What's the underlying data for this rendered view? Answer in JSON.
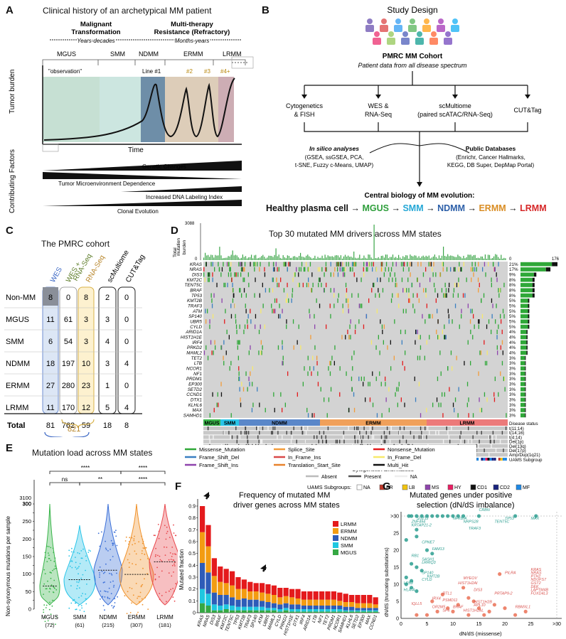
{
  "panelA": {
    "letter": "A",
    "title": "Clinical history of an archetypical MM patient",
    "phase1": "Malignant\nTransformation",
    "phase2": "Multi-therapy\nResistance (Refractory)",
    "years": "Years-decades",
    "months": "Months-years",
    "states": [
      "MGUS",
      "SMM",
      "NDMM",
      "ERMM",
      "LRMM"
    ],
    "observation": "\"observation\"",
    "lines": [
      "Line #1",
      "#2",
      "#3",
      "#4+"
    ],
    "ylabel": "Tumor burden",
    "xlabel": "Time",
    "factors_label": "Contributing Factors",
    "factors": [
      "Genetic Changes",
      "Tumor Microenvironment Dependence",
      "Increased DNA Labeling Index",
      "Clonal Evolution"
    ]
  },
  "panelB": {
    "letter": "B",
    "title": "Study Design",
    "cohort": "PMRC MM Cohort",
    "cohort_sub": "Patient data from all disease spectrum",
    "assays": [
      "Cytogenetics\n& FISH",
      "WES &\nRNA-Seq",
      "scMultiome\n(paired scATAC/RNA-Seq)",
      "CUT&Tag"
    ],
    "insilico_title": "In silico analyses",
    "insilico_body": "(GSEA, ssGSEA, PCA,\nt-SNE, Fuzzy c-Means, UMAP)",
    "public_title": "Public Databases",
    "public_body": "(Enrichr, Cancer Hallmarks,\nKEGG, DB Super, DepMap Portal)",
    "central": "Central biology of MM evolution:",
    "evolution": [
      {
        "label": "Healthy plasma cell",
        "color": "#111111"
      },
      {
        "label": "MGUS",
        "color": "#2e9e3b"
      },
      {
        "label": "SMM",
        "color": "#25a7d6"
      },
      {
        "label": "NDMM",
        "color": "#2c5fa8"
      },
      {
        "label": "ERMM",
        "color": "#d98d24"
      },
      {
        "label": "LRMM",
        "color": "#d62728"
      }
    ],
    "arrow": "→"
  },
  "panelC": {
    "letter": "C",
    "title": "The PMRC cohort",
    "columns": [
      "WES",
      "WES +\nRNA-Seq",
      "RNA-Seq",
      "scMultiome",
      "CUT&Tag"
    ],
    "column_colors": [
      "#3a66c4",
      "#5e7d2a",
      "#b8862b",
      "#111111",
      "#111111"
    ],
    "rows": [
      {
        "state": "Non-MM",
        "values": [
          "8",
          "0",
          "8",
          "2",
          "0"
        ]
      },
      {
        "state": "MGUS",
        "values": [
          "11",
          "61",
          "3",
          "3",
          "0"
        ]
      },
      {
        "state": "SMM",
        "values": [
          "6",
          "54",
          "3",
          "4",
          "0"
        ]
      },
      {
        "state": "NDMM",
        "values": [
          "18",
          "197",
          "10",
          "3",
          "4"
        ]
      },
      {
        "state": "ERMM",
        "values": [
          "27",
          "280",
          "23",
          "1",
          "0"
        ]
      },
      {
        "state": "LRMM",
        "values": [
          "11",
          "170",
          "12",
          "5",
          "4"
        ]
      }
    ],
    "total_label": "Total",
    "totals": [
      "81",
      "762",
      "59",
      "18",
      "8"
    ],
    "sum1": "843",
    "sum2": "821"
  },
  "panelD": {
    "letter": "D",
    "title": "Top 30 mutated MM drivers across MM states",
    "ylabel": "Total\nmutation\nburden",
    "ymax": "3088",
    "ymin": "0",
    "xmax_bar": "176",
    "xmin_bar": "0",
    "genes": [
      "KRAS",
      "NRAS",
      "DIS3",
      "KMT2C",
      "TENT5C",
      "BRAF",
      "TP53",
      "KMT2B",
      "TRAF3",
      "ATM",
      "SP140",
      "UBR5",
      "CYLD",
      "ARID1A",
      "HIST1H1E",
      "IRF4",
      "PRKD2",
      "MAML2",
      "TET2",
      "LTB",
      "NCOR1",
      "NF1",
      "PRDM1",
      "EP300",
      "SETD2",
      "CCND1",
      "DTX1",
      "KLHL6",
      "MAX",
      "SAMHD1"
    ],
    "percents": [
      "21%",
      "17%",
      "9%",
      "8%",
      "8%",
      "8%",
      "8%",
      "5%",
      "5%",
      "5%",
      "5%",
      "5%",
      "5%",
      "4%",
      "4%",
      "4%",
      "4%",
      "4%",
      "3%",
      "3%",
      "3%",
      "3%",
      "3%",
      "3%",
      "3%",
      "3%",
      "3%",
      "3%",
      "3%",
      "3%"
    ],
    "state_bar": [
      "MGUS",
      "SMM",
      "NDMM",
      "ERMM",
      "LRMM"
    ],
    "annot_labels": [
      "Disease status",
      "t(11;14)",
      "t(14;16)",
      "t(4;14)",
      "Del(1p)",
      "Del(13q)",
      "Del(17p)",
      "Amp/Dup(1q21)",
      "UAMS Subgroup"
    ],
    "legend": [
      "Missense_Mutation",
      "Splice_Site",
      "Nonsense_Mutation",
      "Frame_Shift_Del",
      "In_Frame_Ins",
      "In_Frame_Del",
      "Frame_Shift_Ins",
      "Translation_Start_Site",
      "Multi_Hit"
    ],
    "legend_colors": [
      "#2fa838",
      "#f39c3a",
      "#e41a1c",
      "#3a7fc1",
      "#d94848",
      "#f7e96b",
      "#8e44ad",
      "#e8822b",
      "#111111"
    ],
    "cyto_title": "Cytogenetic Abnormalities",
    "cyto_items": [
      "Absent",
      "Present",
      "NA"
    ],
    "uams_title": "UAMS Subgroups:",
    "uams_items": [
      "NA",
      "PR",
      "LB",
      "MS",
      "HY",
      "CD1",
      "CD2",
      "MF"
    ],
    "uams_colors": [
      "#ffffff",
      "#c0392b",
      "#f1c40f",
      "#8e44ad",
      "#e91e63",
      "#111111",
      "#1a237e",
      "#1e88e5"
    ]
  },
  "panelE": {
    "letter": "E",
    "title": "Mutation load across MM states",
    "ylabel": "Non-synonymous mutations per sample",
    "yticks": [
      "0",
      "25",
      "50",
      "75",
      "100",
      "125",
      "150",
      "175",
      "200",
      "225",
      "250",
      "275",
      "300",
      "3100"
    ],
    "categories": [
      "MGUS\n(72)",
      "SMM\n(61)",
      "NDMM\n(215)",
      "ERMM\n(307)",
      "LRMM\n(181)"
    ],
    "colors": [
      "#39b54a",
      "#29c4e8",
      "#3a6fd8",
      "#f0922b",
      "#e8474c"
    ],
    "sig": [
      "****",
      "ns",
      "**",
      "****",
      "ns",
      "****"
    ]
  },
  "panelF": {
    "letter": "F",
    "title": "Frequency of mutated MM\ndriver genes across MM states",
    "ylabel": "Mutated fraction",
    "yticks": [
      "0",
      "0.1",
      "0.2",
      "0.3",
      "0.4",
      "0.5",
      "0.6",
      "0.7",
      "0.8",
      "0.9"
    ],
    "legend": [
      "LRMM",
      "ERMM",
      "NDMM",
      "SMM",
      "MGUS"
    ],
    "legend_colors": [
      "#e41a1c",
      "#f39c12",
      "#2e5cb8",
      "#1fc7e0",
      "#35a843"
    ]
  },
  "panelG": {
    "letter": "G",
    "title": "Mutated genes under positive\nselection (dN/dS imbalance)",
    "ylabel": "dN/dS (truncating substitutions)",
    "xlabel": "dN/dS (missense)",
    "yticks": [
      "0",
      "5",
      "10",
      "15",
      "20",
      "25",
      ">30"
    ],
    "xticks": [
      "0",
      "5",
      "10",
      "15",
      "20",
      "25",
      ">30"
    ],
    "teal_labels": [
      "CRBN",
      "SUZ12",
      "NFKBIA",
      "ZNF494",
      "NRPS28",
      "KRTAP21-2",
      "TRAF3",
      "TENT5C",
      "TP53",
      "MAX",
      "CPNE7",
      "FAM13",
      "RB1",
      "SASH1",
      "LRRIQ3",
      "SP140",
      "KMT2B",
      "LRB2",
      "CYLD",
      "HLA-A"
    ],
    "red_labels": [
      "PILRA",
      "KRAS",
      "NRAS",
      "MYEOV",
      "PTH2",
      "NDUFS7",
      "HIST1H2AI",
      "GST2",
      "DIS3",
      "RTL1",
      "PRTAP9-2",
      "DEK",
      "IRX4",
      "PSMD11",
      "HIST1H2B",
      "LAPTM4B",
      "RPL10",
      "FOXD4L3",
      "RBMXL1",
      "IQLL5",
      "OR2M5",
      "BRAF",
      "SF4",
      "HIST1H2AL"
    ]
  },
  "chart_data": [
    {
      "type": "bar",
      "title": "Frequency of mutated MM driver genes across MM states",
      "ylabel": "Mutated fraction",
      "ylim": [
        0,
        0.9
      ],
      "categories": [
        "KRAS",
        "NRAS",
        "DIS3",
        "BRAF",
        "KMT2C",
        "TENT5C",
        "TP53",
        "KMT2B",
        "TRAF3",
        "SP140",
        "ATM",
        "UBR5",
        "MAML2",
        "CYLD",
        "PRKD2",
        "HIST1H1E",
        "DTX1",
        "IRF4",
        "ARID1A",
        "LTB",
        "NF1",
        "TET2",
        "PRDM1",
        "NCOR1",
        "SAMHD1",
        "KLHL6",
        "SETD2",
        "EP300",
        "MAX",
        "CCND1"
      ],
      "series": [
        {
          "name": "MGUS",
          "values": [
            0.08,
            0.06,
            0.02,
            0.02,
            0.03,
            0.02,
            0.02,
            0.02,
            0.02,
            0.02,
            0.02,
            0.02,
            0.02,
            0.01,
            0.02,
            0.01,
            0.01,
            0.01,
            0.01,
            0.01,
            0.01,
            0.01,
            0.01,
            0.01,
            0.01,
            0.01,
            0.01,
            0.01,
            0.01,
            0.01
          ]
        },
        {
          "name": "SMM",
          "values": [
            0.12,
            0.1,
            0.05,
            0.04,
            0.04,
            0.04,
            0.03,
            0.03,
            0.03,
            0.03,
            0.03,
            0.02,
            0.02,
            0.02,
            0.02,
            0.02,
            0.02,
            0.02,
            0.02,
            0.02,
            0.02,
            0.02,
            0.02,
            0.02,
            0.01,
            0.01,
            0.01,
            0.01,
            0.01,
            0.01
          ]
        },
        {
          "name": "NDMM",
          "values": [
            0.22,
            0.18,
            0.1,
            0.09,
            0.08,
            0.07,
            0.06,
            0.07,
            0.06,
            0.06,
            0.05,
            0.05,
            0.04,
            0.04,
            0.04,
            0.04,
            0.04,
            0.03,
            0.03,
            0.03,
            0.03,
            0.03,
            0.03,
            0.03,
            0.03,
            0.03,
            0.02,
            0.02,
            0.02,
            0.02
          ]
        },
        {
          "name": "ERMM",
          "values": [
            0.26,
            0.22,
            0.14,
            0.11,
            0.1,
            0.1,
            0.09,
            0.08,
            0.07,
            0.07,
            0.07,
            0.07,
            0.07,
            0.06,
            0.06,
            0.06,
            0.05,
            0.05,
            0.05,
            0.05,
            0.05,
            0.05,
            0.05,
            0.04,
            0.04,
            0.04,
            0.04,
            0.04,
            0.04,
            0.03
          ]
        },
        {
          "name": "LRMM",
          "values": [
            0.22,
            0.18,
            0.15,
            0.13,
            0.12,
            0.12,
            0.1,
            0.08,
            0.08,
            0.07,
            0.08,
            0.08,
            0.08,
            0.08,
            0.07,
            0.07,
            0.08,
            0.07,
            0.07,
            0.07,
            0.07,
            0.07,
            0.07,
            0.07,
            0.07,
            0.06,
            0.07,
            0.07,
            0.07,
            0.06
          ]
        }
      ]
    },
    {
      "type": "scatter",
      "title": "Mutated genes under positive selection (dN/dS imbalance)",
      "xlabel": "dN/dS (missense)",
      "ylabel": "dN/dS (truncating substitutions)",
      "xlim": [
        0,
        30
      ],
      "ylim": [
        0,
        30
      ]
    }
  ]
}
